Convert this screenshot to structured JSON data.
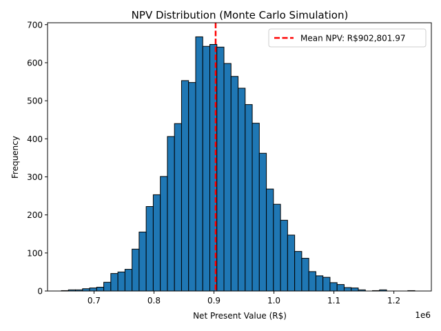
{
  "chart_data": {
    "type": "bar",
    "title": "NPV Distribution (Monte Carlo Simulation)",
    "xlabel": "Net Present Value (R$)",
    "ylabel": "Frequency",
    "x_offset_label": "1e6",
    "xlim": [
      0.6225,
      1.2625
    ],
    "ylim": [
      0,
      705
    ],
    "x_ticks": [
      0.7,
      0.8,
      0.9,
      1.0,
      1.1,
      1.2
    ],
    "x_tick_labels": [
      "0.7",
      "0.8",
      "0.9",
      "1.0",
      "1.1",
      "1.2"
    ],
    "y_ticks": [
      0,
      100,
      200,
      300,
      400,
      500,
      600,
      700
    ],
    "y_tick_labels": [
      "0",
      "100",
      "200",
      "300",
      "400",
      "500",
      "600",
      "700"
    ],
    "bin_start": 0.6455,
    "bin_width": 0.01179,
    "counts": [
      1,
      3,
      3,
      6,
      8,
      10,
      23,
      46,
      50,
      57,
      110,
      155,
      222,
      253,
      301,
      406,
      440,
      553,
      548,
      668,
      643,
      648,
      641,
      598,
      564,
      533,
      490,
      441,
      362,
      268,
      228,
      186,
      147,
      104,
      86,
      51,
      40,
      36,
      22,
      17,
      9,
      8,
      3,
      0,
      1,
      3,
      0,
      0,
      0,
      1
    ],
    "mean_line": {
      "x": 0.9028,
      "label": "Mean NPV: R$902,801.97"
    },
    "grid": false,
    "legend_position": "top-right",
    "colors": {
      "bar_fill": "#1f77b4",
      "bar_edge": "#000000",
      "mean_line": "#ff0000"
    }
  }
}
